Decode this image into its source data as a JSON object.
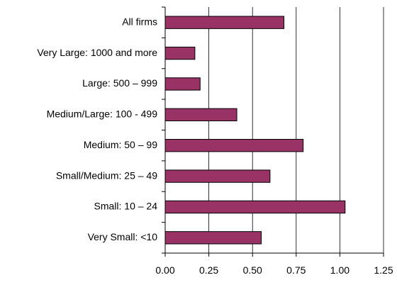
{
  "chart_data": {
    "type": "bar",
    "orientation": "horizontal",
    "title": "",
    "xlabel": "",
    "ylabel": "",
    "categories": [
      "All firms",
      "Very Large: 1000 and more",
      "Large:  500 – 999",
      "Medium/Large:  100 - 499",
      "Medium:  50 – 99",
      "Small/Medium: 25 – 49",
      "Small:  10 – 24",
      "Very Small: <10"
    ],
    "values": [
      0.68,
      0.17,
      0.2,
      0.41,
      0.79,
      0.6,
      1.03,
      0.55
    ],
    "xlim": [
      0,
      1.25
    ],
    "xticks": [
      "0.00",
      "0.25",
      "0.50",
      "0.75",
      "1.00",
      "1.25"
    ],
    "grid": "vertical",
    "legend": "none",
    "bar_color": "#993366",
    "bar_stroke": "#000000"
  }
}
